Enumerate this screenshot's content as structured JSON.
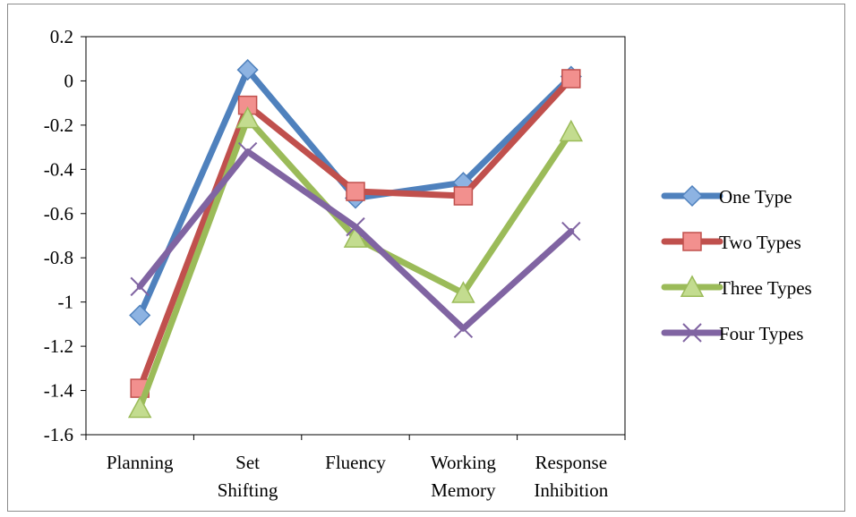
{
  "chart_data": {
    "type": "line",
    "title": "",
    "xlabel": "",
    "ylabel": "",
    "categories": [
      [
        "Planning"
      ],
      [
        "Set",
        "Shifting"
      ],
      [
        "Fluency"
      ],
      [
        "Working",
        "Memory"
      ],
      [
        "Response",
        "Inhibition"
      ]
    ],
    "ylim": [
      -1.6,
      0.2
    ],
    "yticks": [
      "0.2",
      "0",
      "-0.2",
      "-0.4",
      "-0.6",
      "-0.8",
      "-1",
      "-1.2",
      "-1.4",
      "-1.6"
    ],
    "grid": false,
    "legend_position": "right",
    "series": [
      {
        "name": "One Type",
        "values": [
          -1.06,
          0.05,
          -0.53,
          -0.46,
          0.02
        ],
        "color": "#4f81bd",
        "marker": "diamond"
      },
      {
        "name": "Two Types",
        "values": [
          -1.39,
          -0.11,
          -0.5,
          -0.52,
          0.01
        ],
        "color": "#c0504d",
        "marker": "square"
      },
      {
        "name": "Three Types",
        "values": [
          -1.48,
          -0.17,
          -0.71,
          -0.96,
          -0.23
        ],
        "color": "#9bbb59",
        "marker": "triangle"
      },
      {
        "name": "Four Types",
        "values": [
          -0.93,
          -0.32,
          -0.66,
          -1.12,
          -0.68
        ],
        "color": "#8064a2",
        "marker": "x"
      }
    ]
  }
}
